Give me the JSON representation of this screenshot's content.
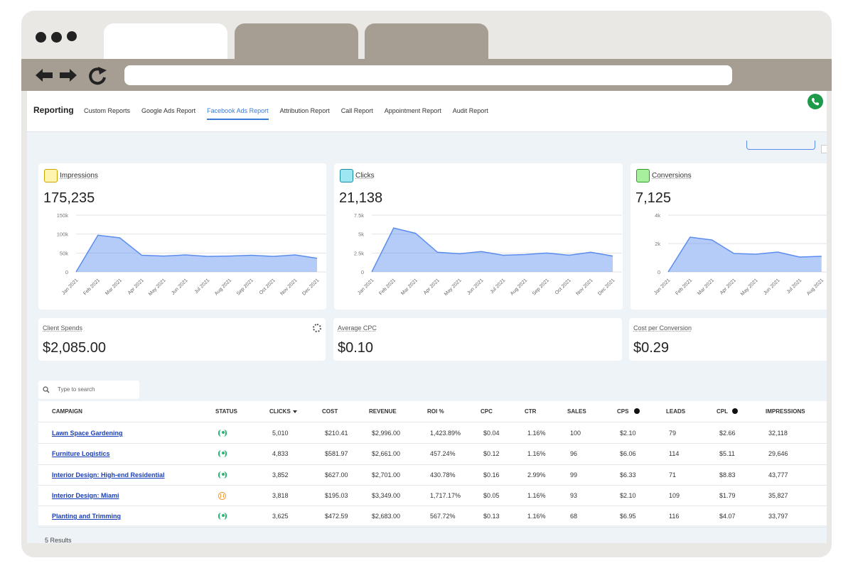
{
  "nav": {
    "title": "Reporting",
    "tabs": [
      "Custom Reports",
      "Google Ads Report",
      "Facebook Ads Report",
      "Attribution Report",
      "Call Report",
      "Appointment Report",
      "Audit Report"
    ],
    "active": 2
  },
  "cards": [
    {
      "label": "Impressions",
      "total": "175,235"
    },
    {
      "label": "Clicks",
      "total": "21,138"
    },
    {
      "label": "Conversions",
      "total": "7,125"
    }
  ],
  "chart_data": [
    {
      "type": "area",
      "color": "#5b8def",
      "grid": true,
      "categories": [
        "Jan 2021",
        "Feb 2021",
        "Mar 2021",
        "Apr 2021",
        "May 2021",
        "Jun 2021",
        "Jul 2021",
        "Aug 2021",
        "Sep 2021",
        "Oct 2021",
        "Nov 2021",
        "Dec 2021"
      ],
      "values": [
        0,
        97000,
        90000,
        44000,
        42000,
        45000,
        41000,
        42000,
        44000,
        41000,
        45000,
        36000
      ],
      "ylim": [
        0,
        150000
      ],
      "yticks": [
        0,
        {
          "value": 50000,
          "label": "50k"
        },
        {
          "value": 100000,
          "label": "100k"
        },
        {
          "value": 150000,
          "label": "150k"
        }
      ]
    },
    {
      "type": "area",
      "color": "#5b8def",
      "grid": true,
      "categories": [
        "Jan 2021",
        "Feb 2021",
        "Mar 2021",
        "Apr 2021",
        "May 2021",
        "Jun 2021",
        "Jul 2021",
        "Aug 2021",
        "Sep 2021",
        "Oct 2021",
        "Nov 2021",
        "Dec 2021"
      ],
      "values": [
        0,
        5800,
        5100,
        2600,
        2400,
        2700,
        2200,
        2300,
        2500,
        2200,
        2600,
        2100
      ],
      "ylim": [
        0,
        7500
      ],
      "yticks": [
        0,
        {
          "value": 2500,
          "label": "2.5k"
        },
        {
          "value": 5000,
          "label": "5k"
        },
        {
          "value": 7500,
          "label": "7.5k"
        }
      ]
    },
    {
      "type": "area",
      "color": "#5b8def",
      "grid": true,
      "categories": [
        "Jan 2021",
        "Feb 2021",
        "Mar 2021",
        "Apr 2021",
        "May 2021",
        "Jun 2021",
        "Jul 2021",
        "Aug 2021"
      ],
      "values": [
        0,
        2450,
        2250,
        1300,
        1250,
        1400,
        1050,
        1100
      ],
      "ylim": [
        0,
        4000
      ],
      "yticks": [
        0,
        {
          "value": 2000,
          "label": "2k"
        },
        {
          "value": 4000,
          "label": "4k"
        }
      ]
    }
  ],
  "spends": [
    {
      "label": "Client Spends",
      "value": "$2,085.00"
    },
    {
      "label": "Average CPC",
      "value": "$0.10"
    },
    {
      "label": "Cost per Conversion",
      "value": "$0.29"
    }
  ],
  "table": {
    "search": "Type to search",
    "columns": [
      "CAMPAIGN",
      "STATUS",
      "CLICKS",
      "COST",
      "REVENUE",
      "ROI %",
      "CPC",
      "CTR",
      "SALES",
      "CPS",
      "LEADS",
      "CPL",
      "IMPRESSIONS"
    ],
    "rows": [
      [
        "Lawn Space Gardening",
        "active",
        "5,010",
        "$210.41",
        "$2,996.00",
        "1,423.89%",
        "$0.04",
        "1.16%",
        "100",
        "$2.10",
        "79",
        "$2.66",
        "32,118"
      ],
      [
        "Furniture Logistics",
        "active",
        "4,833",
        "$581.97",
        "$2,661.00",
        "457.24%",
        "$0.12",
        "1.16%",
        "96",
        "$6.06",
        "114",
        "$5.11",
        "29,646"
      ],
      [
        "Interior Design: High-end Residential",
        "active",
        "3,852",
        "$627.00",
        "$2,701.00",
        "430.78%",
        "$0.16",
        "2.99%",
        "99",
        "$6.33",
        "71",
        "$8.83",
        "43,777"
      ],
      [
        "Interior Design: Miami",
        "paused",
        "3,818",
        "$195.03",
        "$3,349.00",
        "1,717.17%",
        "$0.05",
        "1.16%",
        "93",
        "$2.10",
        "109",
        "$1.79",
        "35,827"
      ],
      [
        "Planting and Trimming",
        "active",
        "3,625",
        "$472.59",
        "$2,683.00",
        "567.72%",
        "$0.13",
        "1.16%",
        "68",
        "$6.95",
        "116",
        "$4.07",
        "33,797"
      ]
    ],
    "footer": "5 Results"
  }
}
